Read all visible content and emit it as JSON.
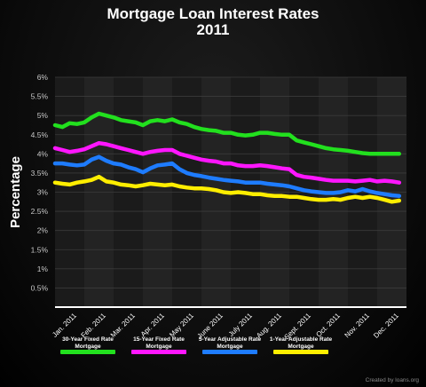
{
  "header": {
    "title_line1": "Mortgage Loan Interest Rates",
    "title_line2": "2011"
  },
  "credit": "Created by loans.org",
  "chart_data": {
    "type": "line",
    "title": "Mortgage Loan Interest Rates 2011",
    "ylabel": "Percentage",
    "xlabel": "",
    "ylim": [
      0,
      6
    ],
    "yticks": [
      "0.5%",
      "1%",
      "1.5%",
      "2%",
      "2.5%",
      "3%",
      "3.5%",
      "4%",
      "4.5%",
      "5%",
      "5.5%",
      "6%"
    ],
    "ytick_values": [
      0.5,
      1,
      1.5,
      2,
      2.5,
      3,
      3.5,
      4,
      4.5,
      5,
      5.5,
      6
    ],
    "categories": [
      "Jan. 2011",
      "Feb. 2011",
      "Mar. 2011",
      "Apr. 2011",
      "May 2011",
      "June 2011",
      "July 2011",
      "Aug. 2011",
      "Sept. 2011",
      "Oct. 2011",
      "Nov. 2011",
      "Dec. 2011"
    ],
    "grid": true,
    "legend_position": "bottom",
    "x_min": 0,
    "x_max": 12,
    "series": [
      {
        "name": "30-Year Fixed Rate Mortgage",
        "color": "#22e01e",
        "x": [
          0,
          0.25,
          0.5,
          0.75,
          1,
          1.25,
          1.5,
          1.75,
          2,
          2.25,
          2.5,
          2.75,
          3,
          3.25,
          3.5,
          3.75,
          4,
          4.25,
          4.5,
          4.75,
          5,
          5.25,
          5.5,
          5.75,
          6,
          6.25,
          6.5,
          6.75,
          7,
          7.25,
          7.5,
          7.75,
          8,
          8.25,
          8.5,
          8.75,
          9,
          9.25,
          9.5,
          9.75,
          10,
          10.25,
          10.5,
          10.75,
          11,
          11.25,
          11.5,
          11.75
        ],
        "values": [
          4.75,
          4.7,
          4.8,
          4.78,
          4.82,
          4.95,
          5.05,
          5.0,
          4.95,
          4.88,
          4.85,
          4.82,
          4.75,
          4.85,
          4.88,
          4.85,
          4.9,
          4.82,
          4.78,
          4.7,
          4.65,
          4.62,
          4.6,
          4.55,
          4.55,
          4.5,
          4.48,
          4.5,
          4.55,
          4.55,
          4.52,
          4.5,
          4.5,
          4.35,
          4.3,
          4.25,
          4.2,
          4.15,
          4.12,
          4.1,
          4.08,
          4.05,
          4.02,
          4.0,
          4.0,
          4.0,
          4.0,
          4.0
        ]
      },
      {
        "name": "15-Year Fixed Rate Mortgage",
        "color": "#ff16ff",
        "x": [
          0,
          0.25,
          0.5,
          0.75,
          1,
          1.25,
          1.5,
          1.75,
          2,
          2.25,
          2.5,
          2.75,
          3,
          3.25,
          3.5,
          3.75,
          4,
          4.25,
          4.5,
          4.75,
          5,
          5.25,
          5.5,
          5.75,
          6,
          6.25,
          6.5,
          6.75,
          7,
          7.25,
          7.5,
          7.75,
          8,
          8.25,
          8.5,
          8.75,
          9,
          9.25,
          9.5,
          9.75,
          10,
          10.25,
          10.5,
          10.75,
          11,
          11.25,
          11.5,
          11.75
        ],
        "values": [
          4.15,
          4.1,
          4.05,
          4.08,
          4.12,
          4.2,
          4.28,
          4.25,
          4.2,
          4.15,
          4.1,
          4.05,
          4.0,
          4.05,
          4.08,
          4.1,
          4.1,
          4.0,
          3.95,
          3.9,
          3.85,
          3.82,
          3.8,
          3.75,
          3.75,
          3.7,
          3.68,
          3.68,
          3.7,
          3.68,
          3.65,
          3.62,
          3.6,
          3.45,
          3.4,
          3.38,
          3.35,
          3.32,
          3.3,
          3.3,
          3.3,
          3.28,
          3.3,
          3.32,
          3.28,
          3.3,
          3.28,
          3.25
        ]
      },
      {
        "name": "5-Year Adjustable Rate Mortgage",
        "color": "#1e7cff",
        "x": [
          0,
          0.25,
          0.5,
          0.75,
          1,
          1.25,
          1.5,
          1.75,
          2,
          2.25,
          2.5,
          2.75,
          3,
          3.25,
          3.5,
          3.75,
          4,
          4.25,
          4.5,
          4.75,
          5,
          5.25,
          5.5,
          5.75,
          6,
          6.25,
          6.5,
          6.75,
          7,
          7.25,
          7.5,
          7.75,
          8,
          8.25,
          8.5,
          8.75,
          9,
          9.25,
          9.5,
          9.75,
          10,
          10.25,
          10.5,
          10.75,
          11,
          11.25,
          11.5,
          11.75
        ],
        "values": [
          3.75,
          3.75,
          3.72,
          3.7,
          3.72,
          3.85,
          3.92,
          3.82,
          3.75,
          3.72,
          3.65,
          3.6,
          3.52,
          3.62,
          3.7,
          3.72,
          3.75,
          3.6,
          3.5,
          3.45,
          3.42,
          3.38,
          3.35,
          3.32,
          3.3,
          3.28,
          3.25,
          3.25,
          3.25,
          3.22,
          3.2,
          3.18,
          3.15,
          3.1,
          3.05,
          3.02,
          3.0,
          2.98,
          2.98,
          3.0,
          3.05,
          3.02,
          3.08,
          3.02,
          2.98,
          2.95,
          2.92,
          2.9
        ]
      },
      {
        "name": "1-Year Adjustable Rate Mortgage",
        "color": "#ffee00",
        "x": [
          0,
          0.25,
          0.5,
          0.75,
          1,
          1.25,
          1.5,
          1.75,
          2,
          2.25,
          2.5,
          2.75,
          3,
          3.25,
          3.5,
          3.75,
          4,
          4.25,
          4.5,
          4.75,
          5,
          5.25,
          5.5,
          5.75,
          6,
          6.25,
          6.5,
          6.75,
          7,
          7.25,
          7.5,
          7.75,
          8,
          8.25,
          8.5,
          8.75,
          9,
          9.25,
          9.5,
          9.75,
          10,
          10.25,
          10.5,
          10.75,
          11,
          11.25,
          11.5,
          11.75
        ],
        "values": [
          3.25,
          3.22,
          3.2,
          3.25,
          3.28,
          3.32,
          3.4,
          3.28,
          3.25,
          3.2,
          3.18,
          3.15,
          3.18,
          3.22,
          3.2,
          3.18,
          3.2,
          3.15,
          3.12,
          3.1,
          3.1,
          3.08,
          3.05,
          3.0,
          2.98,
          3.0,
          2.98,
          2.95,
          2.95,
          2.92,
          2.9,
          2.9,
          2.88,
          2.88,
          2.85,
          2.82,
          2.8,
          2.8,
          2.82,
          2.8,
          2.85,
          2.88,
          2.85,
          2.88,
          2.85,
          2.8,
          2.75,
          2.78
        ]
      }
    ]
  }
}
